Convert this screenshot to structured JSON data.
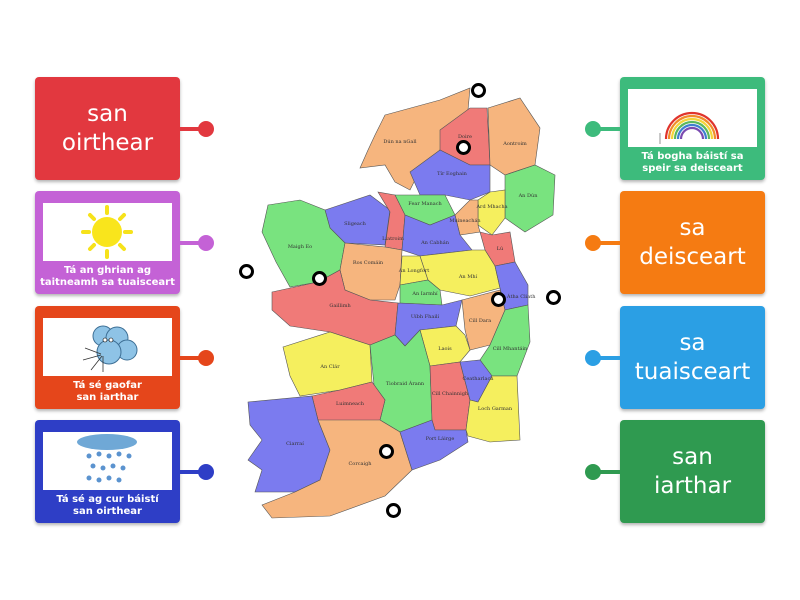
{
  "left_cards": [
    {
      "text": "san oirthear",
      "line1": "san",
      "line2": "oirthear",
      "color": "#e2383f"
    },
    {
      "caption1": "Tá an ghrian ag",
      "caption2": "taitneamh sa tuaisceart",
      "image": "sun-icon",
      "color": "#c462d6"
    },
    {
      "caption1": "Tá sé gaofar",
      "caption2": "san iarthar",
      "image": "wind-cloud-icon",
      "color": "#e5461b"
    },
    {
      "caption1": "Tá sé ag cur báistí",
      "caption2": "san oirthear",
      "image": "rain-cloud-icon",
      "color": "#2e3ec6"
    }
  ],
  "right_cards": [
    {
      "caption1": "Tá bogha báistí sa",
      "caption2": "speir sa deisceart",
      "image": "rainbow-icon",
      "color": "#3dbb7c"
    },
    {
      "line1": "sa",
      "line2": "deisceart",
      "color": "#f57b12"
    },
    {
      "line1": "sa",
      "line2": "tuaisceart",
      "color": "#2b9fe4"
    },
    {
      "line1": "san",
      "line2": "iarthar",
      "color": "#2f9a50"
    }
  ],
  "map": {
    "counties": [
      "Dún na nGall",
      "Doire",
      "Aontroim",
      "Tír Eoghain",
      "An Dún",
      "Ard Mhacha",
      "Fear Manach",
      "Muineachán",
      "Sligeach",
      "Liatroim",
      "An Cabhán",
      "Lú",
      "Maigh Eo",
      "Ros Comáin",
      "An Longfort",
      "An Mhí",
      "An Iarmhí",
      "Baile Átha Cliath",
      "Gaillimh",
      "Uíbh Fhailí",
      "Cill Dara",
      "Cill Mhantáin",
      "Laois",
      "An Clár",
      "Tiobraid Árann",
      "Cill Chainnigh",
      "Ceatharlach",
      "Loch Garman",
      "Luimneach",
      "Ciarraí",
      "Corcaigh",
      "Port Láirge"
    ]
  }
}
